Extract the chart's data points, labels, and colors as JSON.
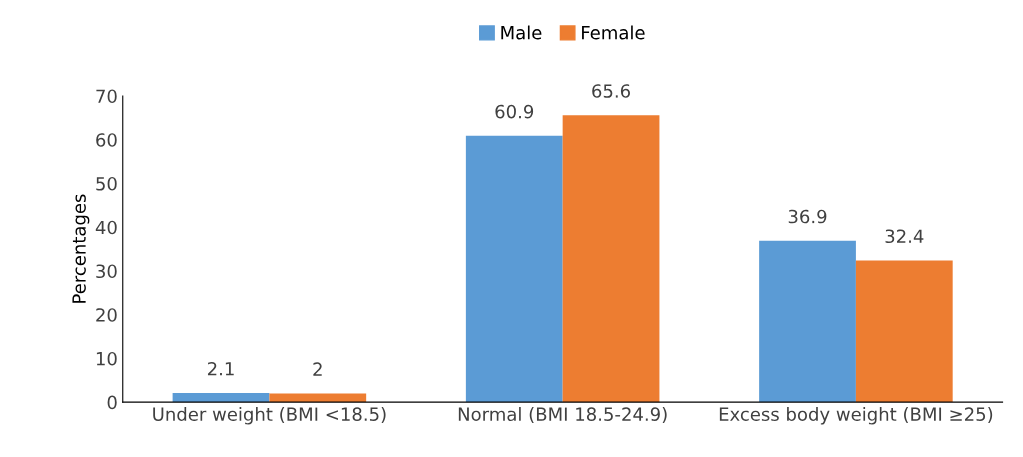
{
  "chart_data": {
    "type": "bar",
    "ylabel": "Percentages",
    "categories": [
      "Under weight (BMI <18.5)",
      "Normal (BMI 18.5-24.9)",
      "Excess body weight (BMI ≥25)"
    ],
    "series": [
      {
        "name": "Male",
        "color": "#5b9bd5",
        "values": [
          2.1,
          60.9,
          36.9
        ]
      },
      {
        "name": "Female",
        "color": "#ed7d31",
        "values": [
          2,
          65.6,
          32.4
        ]
      }
    ],
    "ylim": [
      0,
      70
    ],
    "yticks": [
      0,
      10,
      20,
      30,
      40,
      50,
      60,
      70
    ],
    "grid": false,
    "legend": "top",
    "data_labels": true
  }
}
